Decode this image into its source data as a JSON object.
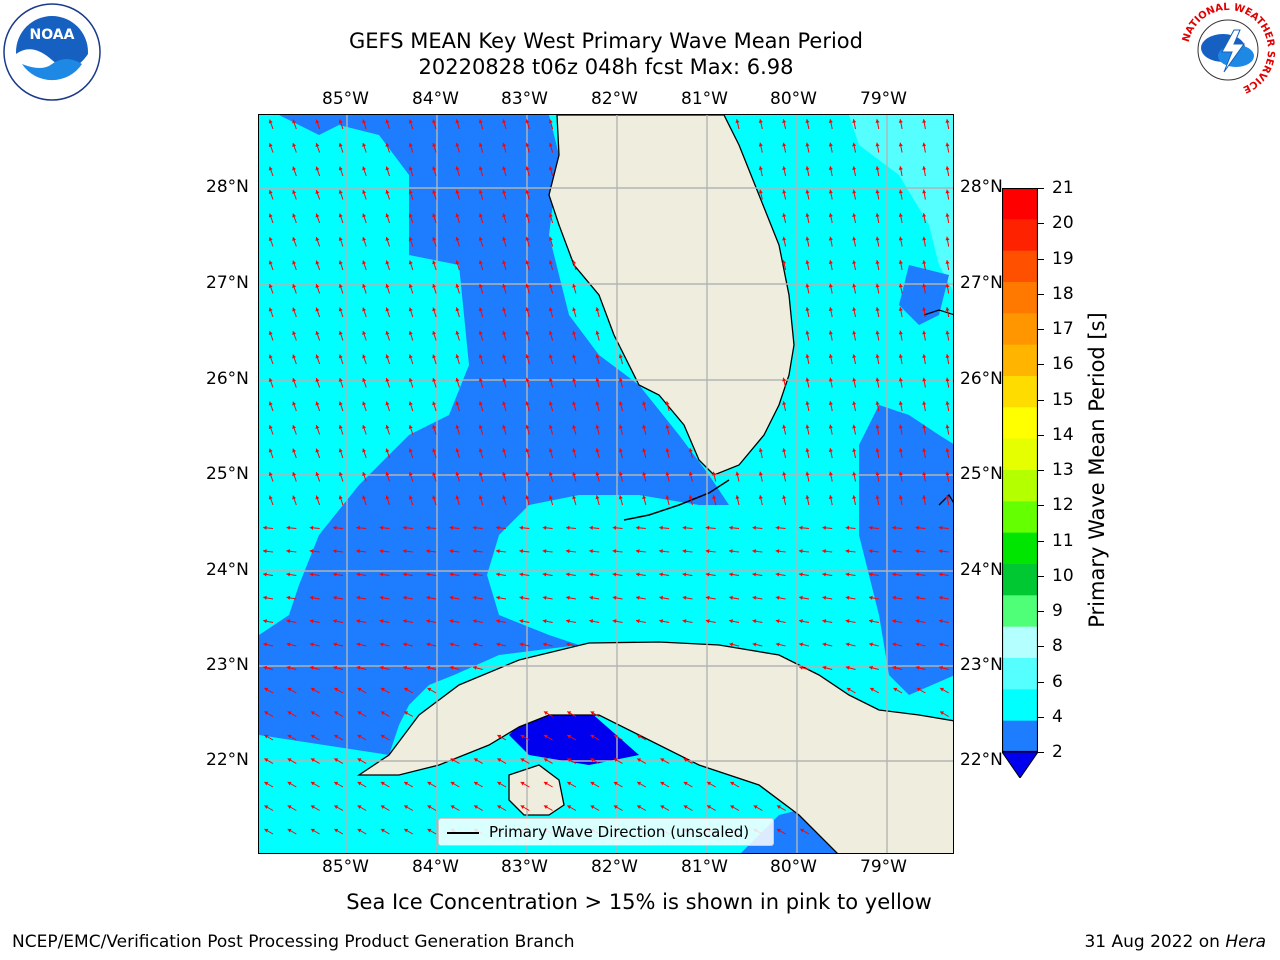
{
  "title": {
    "line1": "GEFS MEAN Key West Primary Wave Mean Period",
    "line2": "20220828 t06z 048h fcst   Max: 6.98"
  },
  "map": {
    "lon_labels": [
      "85°W",
      "84°W",
      "83°W",
      "82°W",
      "81°W",
      "80°W",
      "79°W"
    ],
    "lat_labels": [
      "28°N",
      "27°N",
      "26°N",
      "25°N",
      "24°N",
      "23°N",
      "22°N"
    ],
    "colors": {
      "cyan": "#00ffff",
      "blue": "#1e7cff",
      "dark_blue": "#0000ee",
      "light_cyan": "#55ffff",
      "land": "#efeede",
      "grid": "#b4b4b4",
      "arrow": "#ff0000"
    }
  },
  "colorbar": {
    "title": "Primary Wave Mean Period [s]",
    "ticks": [
      "21",
      "20",
      "19",
      "18",
      "17",
      "16",
      "15",
      "14",
      "13",
      "12",
      "11",
      "10",
      "9",
      "8",
      "6",
      "4",
      "2"
    ],
    "colors": [
      "#ff0000",
      "#ff2200",
      "#ff5000",
      "#ff7800",
      "#ff9600",
      "#ffb400",
      "#ffdc00",
      "#ffff00",
      "#e6ff00",
      "#b4ff00",
      "#64ff00",
      "#00e600",
      "#00c832",
      "#50ff78",
      "#b4ffff",
      "#55ffff",
      "#00ffff",
      "#1e7cff",
      "#0000ee"
    ]
  },
  "legend": {
    "label": "Primary Wave Direction (unscaled)"
  },
  "caption": "Sea Ice Concentration > 15% is shown in pink to yellow",
  "footer": {
    "left": "NCEP/EMC/Verification Post Processing Product Generation Branch",
    "right_prefix": "31 Aug 2022 on ",
    "right_machine": "Hera"
  },
  "logos": {
    "left": "noaa-logo",
    "left_text": "NOAA",
    "right": "nws-logo",
    "right_text": "NATIONAL WEATHER SERVICE"
  }
}
